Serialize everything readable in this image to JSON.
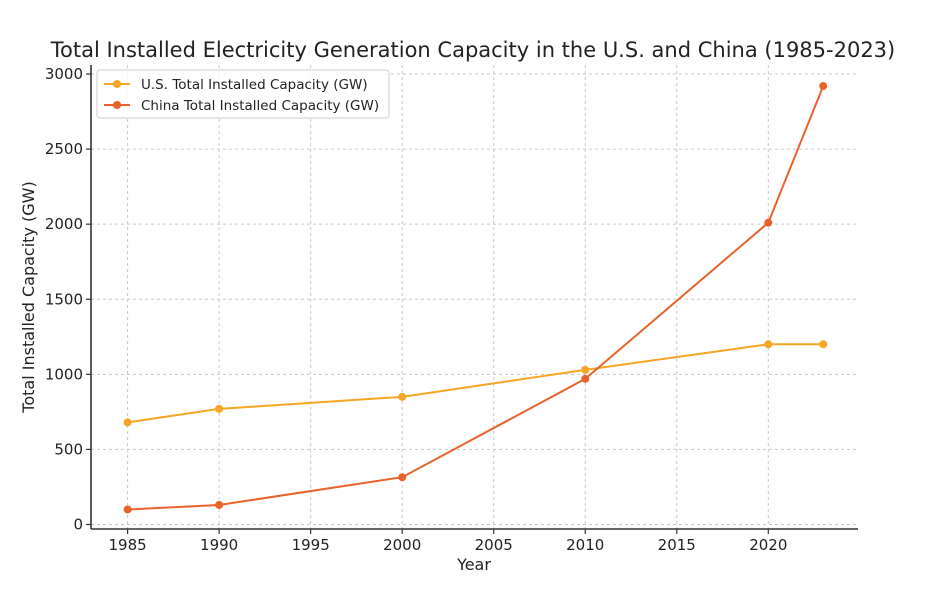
{
  "chart_data": {
    "type": "line",
    "title": "Total Installed Electricity Generation Capacity in the U.S. and China (1985-2023)",
    "xlabel": "Year",
    "ylabel": "Total Installed Capacity (GW)",
    "x": [
      1985,
      1990,
      2000,
      2010,
      2020,
      2023
    ],
    "xlim": [
      1983,
      2024.9
    ],
    "ylim": [
      -30,
      3060
    ],
    "xticks": [
      1985,
      1990,
      1995,
      2000,
      2005,
      2010,
      2015,
      2020
    ],
    "yticks": [
      0,
      500,
      1000,
      1500,
      2000,
      2500,
      3000
    ],
    "grid": true,
    "legend": "top-left",
    "series": [
      {
        "name": "U.S. Total Installed Capacity (GW)",
        "color": "#f5a623",
        "values": [
          680,
          770,
          850,
          1030,
          1200,
          1200
        ]
      },
      {
        "name": "China Total Installed Capacity (GW)",
        "color": "#e8622a",
        "values": [
          100,
          130,
          315,
          970,
          2010,
          2920
        ]
      }
    ]
  }
}
